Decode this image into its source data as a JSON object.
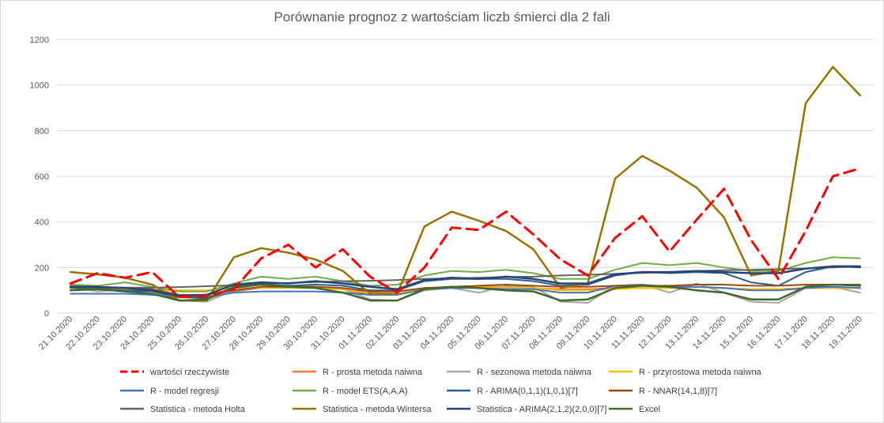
{
  "chart_data": {
    "type": "line",
    "title": "Porównanie prognoz z wartościam liczb śmierci dla 2 fali",
    "xlabel": "",
    "ylabel": "",
    "ylim": [
      0,
      1200
    ],
    "yticks": [
      0,
      200,
      400,
      600,
      800,
      1000,
      1200
    ],
    "grid": true,
    "legend_position": "bottom",
    "categories": [
      "21.10.2020",
      "22.10.2020",
      "23.10.2020",
      "24.10.2020",
      "25.10.2020",
      "26.10.2020",
      "27.10.2020",
      "28.10.2020",
      "29.10.2020",
      "30.10.2020",
      "31.10.2020",
      "01.11.2020",
      "02.11.2020",
      "03.11.2020",
      "04.11.2020",
      "05.11.2020",
      "06.11.2020",
      "07.11.2020",
      "08.11.2020",
      "09.11.2020",
      "10.11.2020",
      "11.11.2020",
      "12.11.2020",
      "13.11.2020",
      "14.11.2020",
      "15.11.2020",
      "16.11.2020",
      "17.11.2020",
      "18.11.2020",
      "19.11.2020"
    ],
    "series": [
      {
        "name": "wartości rzeczywiste",
        "color": "#ff0000",
        "dashed": true,
        "width": 3,
        "values": [
          130,
          175,
          155,
          180,
          70,
          75,
          105,
          240,
          300,
          200,
          280,
          160,
          90,
          200,
          375,
          365,
          445,
          345,
          235,
          165,
          330,
          425,
          270,
          410,
          545,
          320,
          150,
          360,
          600,
          635
        ]
      },
      {
        "name": "R - prosta metoda naiwna",
        "color": "#ed7d31",
        "dashed": false,
        "width": 2,
        "values": [
          120,
          115,
          110,
          100,
          75,
          65,
          95,
          110,
          115,
          110,
          105,
          80,
          85,
          110,
          110,
          115,
          115,
          110,
          105,
          105,
          110,
          110,
          110,
          115,
          110,
          105,
          105,
          110,
          110,
          110
        ]
      },
      {
        "name": "R - sezonowa metoda naiwna",
        "color": "#a5a5a5",
        "dashed": false,
        "width": 2,
        "values": [
          115,
          95,
          105,
          95,
          55,
          50,
          100,
          110,
          120,
          115,
          105,
          60,
          55,
          100,
          110,
          90,
          120,
          115,
          50,
          45,
          120,
          125,
          90,
          130,
          90,
          50,
          45,
          110,
          115,
          90
        ]
      },
      {
        "name": "R - przyrostowa metoda naiwna",
        "color": "#ffc000",
        "dashed": false,
        "width": 2,
        "values": [
          110,
          110,
          105,
          100,
          100,
          100,
          110,
          110,
          110,
          110,
          105,
          90,
          85,
          110,
          110,
          115,
          110,
          110,
          100,
          100,
          105,
          110,
          110,
          115,
          110,
          105,
          105,
          110,
          110,
          110
        ]
      },
      {
        "name": "R - model regresji",
        "color": "#4472c4",
        "dashed": false,
        "width": 2,
        "values": [
          85,
          85,
          85,
          80,
          70,
          70,
          90,
          95,
          95,
          95,
          90,
          80,
          80,
          105,
          110,
          110,
          105,
          105,
          90,
          90,
          120,
          125,
          115,
          115,
          110,
          100,
          100,
          110,
          115,
          110
        ]
      },
      {
        "name": "R - model ETS(A,A,A)",
        "color": "#70ad47",
        "dashed": false,
        "width": 2,
        "values": [
          125,
          120,
          135,
          115,
          95,
          95,
          130,
          160,
          150,
          160,
          140,
          120,
          125,
          165,
          185,
          180,
          190,
          175,
          150,
          150,
          190,
          220,
          210,
          220,
          200,
          185,
          185,
          220,
          245,
          240
        ]
      },
      {
        "name": "R - ARIMA(0,1,1)(1,0,1)[7]",
        "color": "#255e91",
        "dashed": false,
        "width": 2,
        "values": [
          110,
          105,
          100,
          95,
          70,
          65,
          110,
          125,
          120,
          125,
          120,
          100,
          100,
          140,
          150,
          150,
          150,
          140,
          120,
          125,
          165,
          180,
          175,
          180,
          175,
          135,
          120,
          180,
          205,
          200
        ]
      },
      {
        "name": "R - NNAR(14,1,8)[7]",
        "color": "#9e480e",
        "dashed": false,
        "width": 2,
        "values": [
          115,
          110,
          110,
          105,
          80,
          80,
          100,
          115,
          115,
          115,
          110,
          95,
          95,
          110,
          115,
          120,
          125,
          120,
          115,
          115,
          120,
          120,
          120,
          125,
          125,
          120,
          120,
          125,
          125,
          125
        ]
      },
      {
        "name": "Statistica - metoda Holta",
        "color": "#636363",
        "dashed": false,
        "width": 2,
        "values": [
          110,
          110,
          112,
          112,
          114,
          118,
          122,
          128,
          132,
          136,
          140,
          142,
          145,
          150,
          152,
          155,
          158,
          160,
          165,
          168,
          172,
          176,
          180,
          184,
          188,
          190,
          193,
          196,
          200,
          205
        ]
      },
      {
        "name": "Statistica - metoda Wintersa",
        "color": "#997300",
        "dashed": false,
        "width": 2.5,
        "values": [
          180,
          170,
          155,
          125,
          55,
          55,
          245,
          285,
          265,
          235,
          185,
          85,
          85,
          380,
          445,
          405,
          360,
          280,
          110,
          130,
          590,
          690,
          625,
          550,
          420,
          165,
          185,
          920,
          1080,
          955
        ]
      },
      {
        "name": "Statistica - ARIMA(2,1,2)(2,0,0)[7]",
        "color": "#264478",
        "dashed": false,
        "width": 2.5,
        "values": [
          115,
          115,
          110,
          100,
          75,
          80,
          125,
          135,
          130,
          140,
          130,
          115,
          105,
          145,
          155,
          150,
          160,
          150,
          130,
          130,
          170,
          180,
          180,
          185,
          180,
          175,
          175,
          195,
          205,
          205
        ]
      },
      {
        "name": "Excel",
        "color": "#43682b",
        "dashed": false,
        "width": 2.5,
        "values": [
          100,
          105,
          95,
          85,
          55,
          60,
          115,
          125,
          115,
          110,
          90,
          55,
          55,
          105,
          115,
          110,
          100,
          95,
          55,
          60,
          110,
          120,
          115,
          100,
          90,
          60,
          60,
          115,
          125,
          120
        ]
      }
    ]
  }
}
